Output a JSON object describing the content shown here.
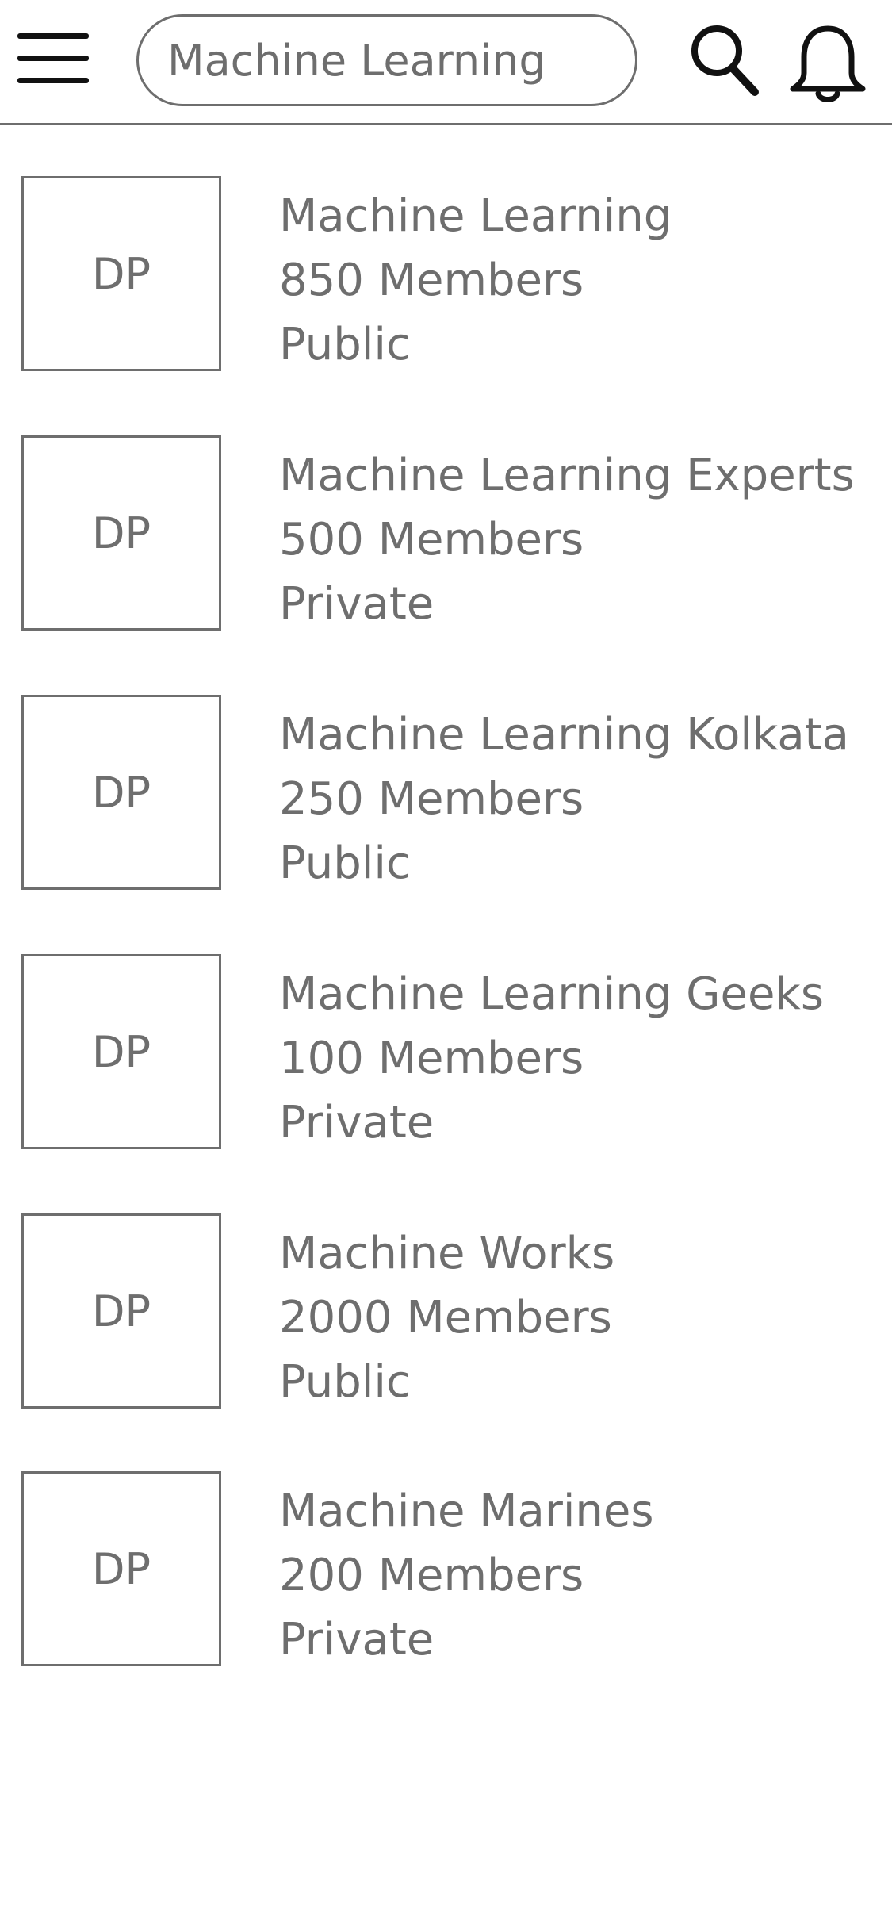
{
  "header": {
    "search": {
      "value": "Machine Learning"
    }
  },
  "groups": [
    {
      "avatar": "DP",
      "name": "Machine Learning",
      "members": "850 Members",
      "privacy": "Public"
    },
    {
      "avatar": "DP",
      "name": "Machine Learning Experts",
      "members": "500 Members",
      "privacy": "Private"
    },
    {
      "avatar": "DP",
      "name": "Machine Learning Kolkata",
      "members": "250 Members",
      "privacy": "Public"
    },
    {
      "avatar": "DP",
      "name": "Machine Learning Geeks",
      "members": "100 Members",
      "privacy": "Private"
    },
    {
      "avatar": "DP",
      "name": "Machine Works",
      "members": "2000 Members",
      "privacy": "Public"
    },
    {
      "avatar": "DP",
      "name": "Machine Marines",
      "members": "200 Members",
      "privacy": "Private"
    }
  ],
  "icons": {
    "menu": "hamburger-menu-icon",
    "search": "search-icon",
    "notifications": "bell-icon"
  },
  "colors": {
    "text": "#6e6e6e",
    "icon": "#111111",
    "background": "#ffffff"
  }
}
